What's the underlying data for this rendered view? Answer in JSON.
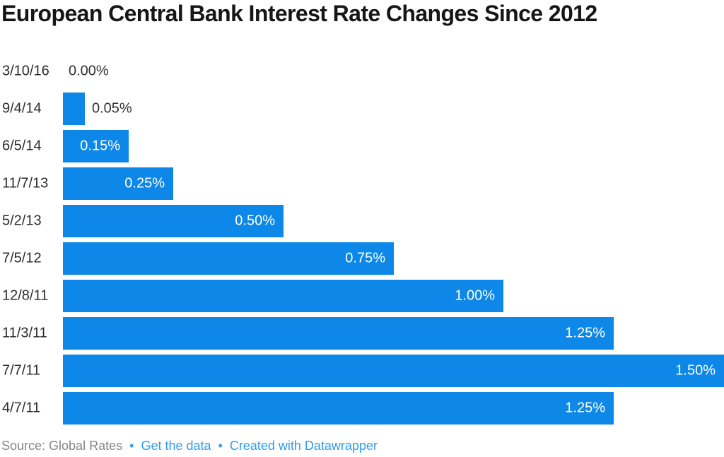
{
  "chart_data": {
    "type": "bar",
    "orientation": "horizontal",
    "title": "European Central Bank Interest Rate Changes Since 2012",
    "categories": [
      "3/10/16",
      "9/4/14",
      "6/5/14",
      "11/7/13",
      "5/2/13",
      "7/5/12",
      "12/8/11",
      "11/3/11",
      "7/7/11",
      "4/7/11"
    ],
    "values": [
      0.0,
      0.05,
      0.15,
      0.25,
      0.5,
      0.75,
      1.0,
      1.25,
      1.5,
      1.25
    ],
    "value_labels": [
      "0.00%",
      "0.05%",
      "0.15%",
      "0.25%",
      "0.50%",
      "0.75%",
      "1.00%",
      "1.25%",
      "1.50%",
      "1.25%"
    ],
    "xlabel": "",
    "ylabel": "",
    "xlim": [
      0,
      1.5
    ],
    "grid": "off",
    "legend": "none",
    "bar_color": "#0d87e8",
    "value_label_inside_color": "#ffffff",
    "value_label_outside_color": "#333333"
  },
  "footer": {
    "source_label": "Source: Global Rates",
    "separator": "•",
    "links": [
      {
        "label": "Get the data"
      },
      {
        "label": "Created with Datawrapper"
      }
    ],
    "link_color": "#2d9cf2",
    "source_color": "#868686"
  }
}
